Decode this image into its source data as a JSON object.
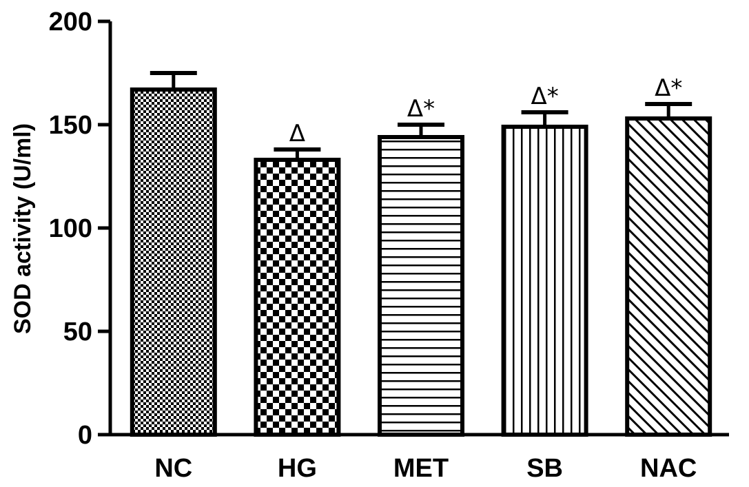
{
  "chart_data": {
    "type": "bar",
    "title": "",
    "xlabel": "",
    "ylabel": "SOD activity (U/ml)",
    "ylim": [
      0,
      200
    ],
    "yticks": [
      0,
      50,
      100,
      150,
      200
    ],
    "categories": [
      "NC",
      "HG",
      "MET",
      "SB",
      "NAC"
    ],
    "values": [
      167,
      133,
      144,
      149,
      153
    ],
    "errors": [
      8,
      5,
      6,
      7,
      7
    ],
    "annotations": [
      "",
      "Δ",
      "Δ*",
      "Δ*",
      "Δ*"
    ],
    "patterns": [
      "fine-checker",
      "checker",
      "horizontal-lines",
      "vertical-lines",
      "diagonal-lines"
    ],
    "bar_fill": "#ffffff",
    "bar_stroke": "#000000"
  }
}
